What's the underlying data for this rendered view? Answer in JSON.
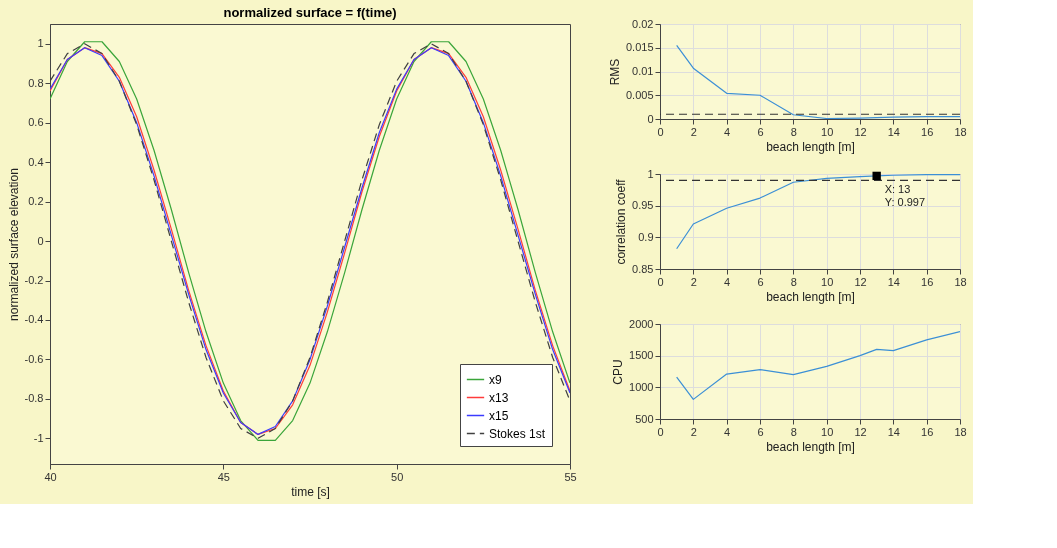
{
  "chart_data": [
    {
      "type": "line",
      "title": "normalized surface = f(time)",
      "xlabel": "time [s]",
      "ylabel": "normalized surface elevation",
      "x": [
        40,
        40.5,
        41,
        41.5,
        42,
        42.5,
        43,
        43.5,
        44,
        44.5,
        45,
        45.5,
        46,
        46.5,
        47,
        47.5,
        48,
        48.5,
        49,
        49.5,
        50,
        50.5,
        51,
        51.5,
        52,
        52.5,
        53,
        53.5,
        54,
        54.5,
        55
      ],
      "series": [
        {
          "name": "x9",
          "color": "#3aa53a",
          "values": [
            0.72,
            0.91,
            1.01,
            1.01,
            0.91,
            0.72,
            0.46,
            0.16,
            -0.16,
            -0.46,
            -0.72,
            -0.91,
            -1.01,
            -1.01,
            -0.91,
            -0.72,
            -0.46,
            -0.16,
            0.16,
            0.46,
            0.72,
            0.91,
            1.01,
            1.01,
            0.91,
            0.72,
            0.46,
            0.16,
            -0.16,
            -0.46,
            -0.72
          ]
        },
        {
          "name": "x13",
          "color": "#ff3b3b",
          "values": [
            0.76,
            0.92,
            0.98,
            0.95,
            0.83,
            0.63,
            0.36,
            0.06,
            -0.25,
            -0.53,
            -0.76,
            -0.92,
            -0.98,
            -0.95,
            -0.83,
            -0.63,
            -0.36,
            -0.06,
            0.25,
            0.53,
            0.76,
            0.92,
            0.98,
            0.95,
            0.83,
            0.63,
            0.36,
            0.06,
            -0.25,
            -0.53,
            -0.76
          ]
        },
        {
          "name": "x15",
          "color": "#3b3bff",
          "values": [
            0.77,
            0.92,
            0.98,
            0.94,
            0.81,
            0.6,
            0.33,
            0.03,
            -0.27,
            -0.55,
            -0.77,
            -0.92,
            -0.98,
            -0.94,
            -0.81,
            -0.6,
            -0.33,
            -0.03,
            0.27,
            0.55,
            0.77,
            0.92,
            0.98,
            0.94,
            0.81,
            0.6,
            0.33,
            0.03,
            -0.27,
            -0.55,
            -0.77
          ]
        },
        {
          "name": "Stokes 1st",
          "color": "#404040",
          "line_style": "dashed",
          "values": [
            0.81,
            0.95,
            1.0,
            0.95,
            0.81,
            0.59,
            0.31,
            0,
            -0.31,
            -0.59,
            -0.81,
            -0.95,
            -1.0,
            -0.95,
            -0.81,
            -0.59,
            -0.31,
            0,
            0.31,
            0.59,
            0.81,
            0.95,
            1.0,
            0.95,
            0.81,
            0.59,
            0.31,
            0,
            -0.31,
            -0.59,
            -0.81
          ]
        }
      ],
      "xlim": [
        40,
        55
      ],
      "xticks": [
        40,
        45,
        50,
        55
      ],
      "ylim": [
        -1.13,
        1.1
      ],
      "yticks": [
        -1,
        -0.8,
        -0.6,
        -0.4,
        -0.2,
        0,
        0.2,
        0.4,
        0.6,
        0.8,
        1
      ],
      "grid": false,
      "legend": "bottom right"
    },
    {
      "type": "line",
      "xlabel": "beach length [m]",
      "ylabel": "RMS",
      "x": [
        1,
        2,
        4,
        6,
        8,
        10,
        12,
        14,
        16,
        18
      ],
      "series": [
        {
          "color": "#3b8fd6",
          "values": [
            0.0155,
            0.0107,
            0.0054,
            0.005,
            0.0009,
            0.0001,
            0.0002,
            0.0004,
            0.0005,
            0.0005
          ]
        }
      ],
      "xlim": [
        0,
        18
      ],
      "xticks": [
        0,
        2,
        4,
        6,
        8,
        10,
        12,
        14,
        16,
        18
      ],
      "ylim": [
        0,
        0.02
      ],
      "yticks": [
        0,
        0.005,
        0.01,
        0.015,
        0.02
      ],
      "grid": true,
      "ref_lines": [
        {
          "axis": "y",
          "value": 0.001,
          "color": "#333333",
          "line_style": "dashed"
        }
      ]
    },
    {
      "type": "line",
      "xlabel": "beach length [m]",
      "ylabel": "correlation coeff",
      "x": [
        1,
        2,
        4,
        6,
        8,
        10,
        12,
        13,
        14,
        16,
        18
      ],
      "series": [
        {
          "color": "#3b8fd6",
          "values": [
            0.882,
            0.921,
            0.946,
            0.962,
            0.987,
            0.993,
            0.996,
            0.997,
            0.998,
            0.999,
            0.999
          ]
        }
      ],
      "xlim": [
        0,
        18
      ],
      "xticks": [
        0,
        2,
        4,
        6,
        8,
        10,
        12,
        14,
        16,
        18
      ],
      "ylim": [
        0.85,
        1
      ],
      "yticks": [
        0.85,
        0.9,
        0.95,
        1
      ],
      "grid": true,
      "ref_lines": [
        {
          "axis": "y",
          "value": 0.99,
          "color": "#333333",
          "line_style": "dashed"
        }
      ],
      "annotations": [
        {
          "text": "X: 13\nY: 0.997",
          "x": 13,
          "y": 0.997
        }
      ]
    },
    {
      "type": "line",
      "xlabel": "beach length [m]",
      "ylabel": "CPU",
      "x": [
        1,
        2,
        4,
        6,
        8,
        10,
        12,
        13,
        14,
        16,
        18
      ],
      "series": [
        {
          "color": "#3b8fd6",
          "values": [
            1160,
            810,
            1210,
            1280,
            1200,
            1330,
            1500,
            1600,
            1580,
            1750,
            1880
          ]
        }
      ],
      "xlim": [
        0,
        18
      ],
      "xticks": [
        0,
        2,
        4,
        6,
        8,
        10,
        12,
        14,
        16,
        18
      ],
      "ylim": [
        500,
        2000
      ],
      "yticks": [
        500,
        1000,
        1500,
        2000
      ],
      "grid": true
    }
  ]
}
